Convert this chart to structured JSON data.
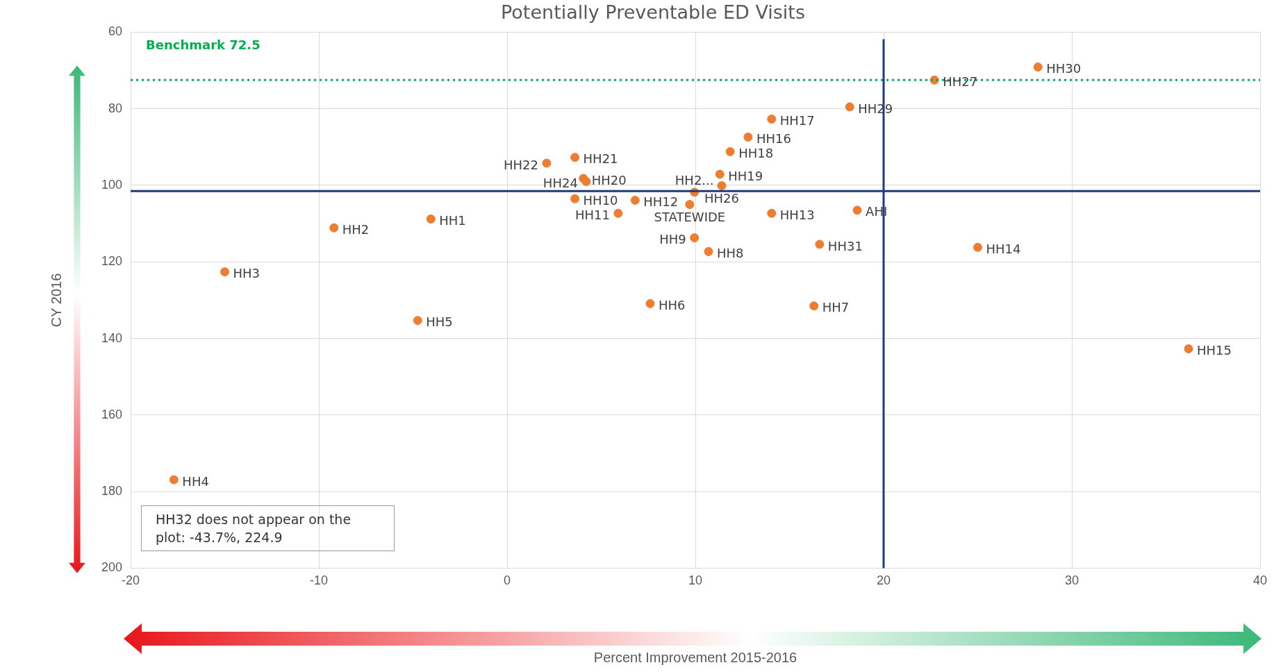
{
  "chart_data": {
    "type": "scatter",
    "title": "Potentially Preventable ED Visits",
    "xlabel": "Percent Improvement 2015-2016",
    "ylabel": "CY 2016",
    "x": [
      28.2,
      22.7,
      18.2,
      14.05,
      12.8,
      11.85,
      3.6,
      2.1,
      4.05,
      4.2,
      11.3,
      11.4,
      9.7,
      9.95,
      3.6,
      5.9,
      6.8,
      14.05,
      18.6,
      9.95,
      10.7,
      16.6,
      25.0,
      36.2,
      16.3,
      7.6,
      -4.75,
      -15.0,
      -9.2,
      -4.05,
      -17.7
    ],
    "values": [
      69.1,
      72.5,
      79.5,
      82.7,
      87.4,
      91.2,
      92.7,
      94.2,
      98.2,
      99.0,
      97.1,
      100.1,
      105,
      101.8,
      103.5,
      107.3,
      103.9,
      107.3,
      106.5,
      113.7,
      117.3,
      115.4,
      116.2,
      142.7,
      131.5,
      130.9,
      135.3,
      122.6,
      111.1,
      108.8,
      176.9
    ],
    "value_labels": [
      "HH30",
      "HH27",
      "HH29",
      "HH17",
      "HH16",
      "HH18",
      "HH21",
      "HH22",
      "HH20",
      "HH24",
      "HH19",
      "HH26",
      "STATEWIDE",
      "HH2...",
      "HH10",
      "HH11",
      "HH12",
      "HH13",
      "AHI",
      "HH9",
      "HH8",
      "HH31",
      "HH14",
      "HH15",
      "HH7",
      "HH6",
      "HH5",
      "HH3",
      "HH2",
      "HH1",
      "HH4"
    ],
    "color": "#ed7d31",
    "marker": "circle",
    "xlim": [
      -20,
      40
    ],
    "xticks": [
      -20,
      -10,
      0,
      10,
      20,
      30,
      40
    ],
    "ylim": [
      200,
      60
    ],
    "yticks": [
      60,
      80,
      100,
      120,
      140,
      160,
      180,
      200
    ],
    "grid": true,
    "ref_lines": [
      {
        "axis": "y",
        "value": 72.5,
        "label": "Benchmark 72.5",
        "color": "#00b050",
        "line_style": "dotted"
      },
      {
        "axis": "x",
        "value": 20,
        "color": "#1f3a7a",
        "line_style": "solid"
      },
      {
        "axis": "y",
        "value": 101.5,
        "color": "#1f3a7a",
        "line_style": "solid"
      }
    ],
    "annotations": [
      "HH32 does not appear on the plot: -43.7%, 224.9"
    ]
  }
}
